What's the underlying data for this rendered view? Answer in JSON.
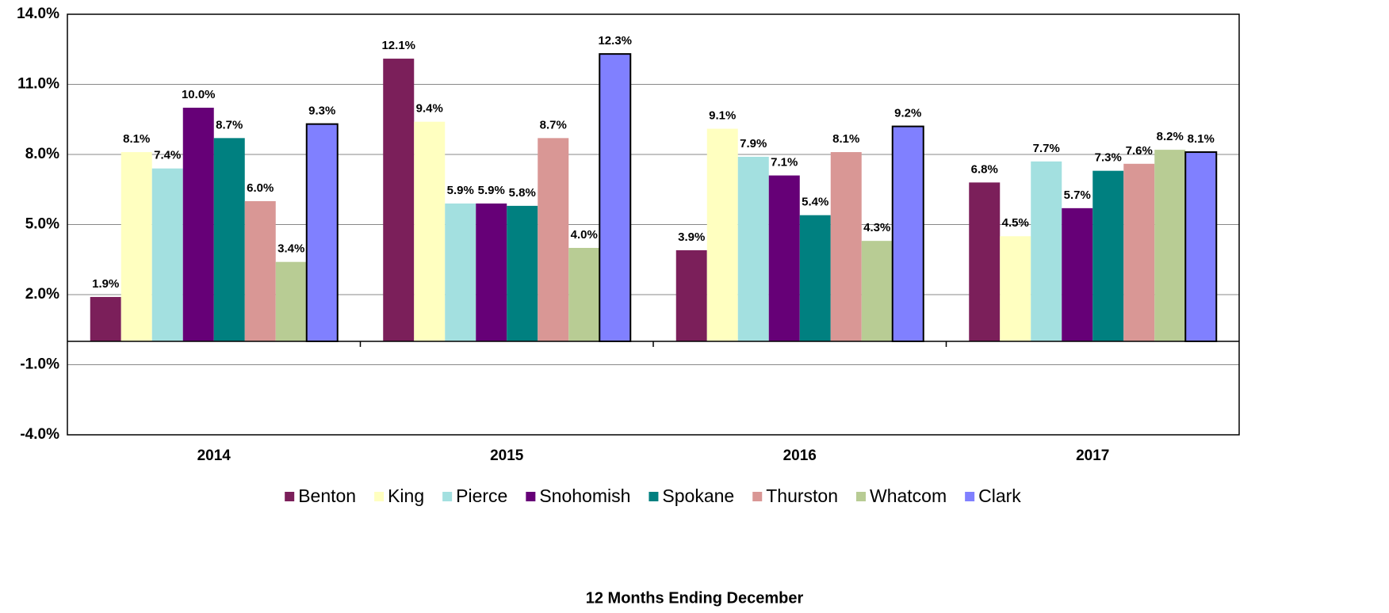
{
  "chart_data": {
    "type": "bar",
    "categories": [
      "2014",
      "2015",
      "2016",
      "2017"
    ],
    "series": [
      {
        "name": "Benton",
        "color": "#7b1f5a",
        "values": [
          1.9,
          12.1,
          3.9,
          6.8
        ],
        "value_labels": [
          "1.9%",
          "12.1%",
          "3.9%",
          "6.8%"
        ]
      },
      {
        "name": "King",
        "color": "#ffffc0",
        "values": [
          8.1,
          9.4,
          9.1,
          4.5
        ],
        "value_labels": [
          "8.1%",
          "9.4%",
          "9.1%",
          "4.5%"
        ]
      },
      {
        "name": "Pierce",
        "color": "#a3e0e0",
        "values": [
          7.4,
          5.9,
          7.9,
          7.7
        ],
        "value_labels": [
          "7.4%",
          "5.9%",
          "7.9%",
          "7.7%"
        ]
      },
      {
        "name": "Snohomish",
        "color": "#660077",
        "values": [
          10.0,
          5.9,
          7.1,
          5.7
        ],
        "value_labels": [
          "10.0%",
          "5.9%",
          "7.1%",
          "5.7%"
        ]
      },
      {
        "name": "Spokane",
        "color": "#008080",
        "values": [
          8.7,
          5.8,
          5.4,
          7.3
        ],
        "value_labels": [
          "8.7%",
          "5.8%",
          "5.4%",
          "7.3%"
        ]
      },
      {
        "name": "Thurston",
        "color": "#d99795",
        "values": [
          6.0,
          8.7,
          8.1,
          7.6
        ],
        "value_labels": [
          "6.0%",
          "8.7%",
          "8.1%",
          "7.6%"
        ]
      },
      {
        "name": "Whatcom",
        "color": "#b8cc94",
        "values": [
          3.4,
          4.0,
          4.3,
          8.2
        ],
        "value_labels": [
          "3.4%",
          "4.0%",
          "4.3%",
          "8.2%"
        ]
      },
      {
        "name": "Clark",
        "color": "#8080ff",
        "edgecolor": "#000000",
        "values": [
          9.3,
          12.3,
          9.2,
          8.1
        ],
        "value_labels": [
          "9.3%",
          "12.3%",
          "9.2%",
          "8.1%"
        ]
      }
    ],
    "xlabel": "12 Months Ending December",
    "ylim": [
      -4,
      14
    ],
    "yticks": [
      {
        "value": -4,
        "label": "-4.0%"
      },
      {
        "value": -1,
        "label": "-1.0%"
      },
      {
        "value": 2,
        "label": "2.0%"
      },
      {
        "value": 5,
        "label": "5.0%"
      },
      {
        "value": 8,
        "label": "8.0%"
      },
      {
        "value": 11,
        "label": "11.0%"
      },
      {
        "value": 14,
        "label": "14.0%"
      }
    ],
    "grid": true,
    "legend": "bottom"
  }
}
